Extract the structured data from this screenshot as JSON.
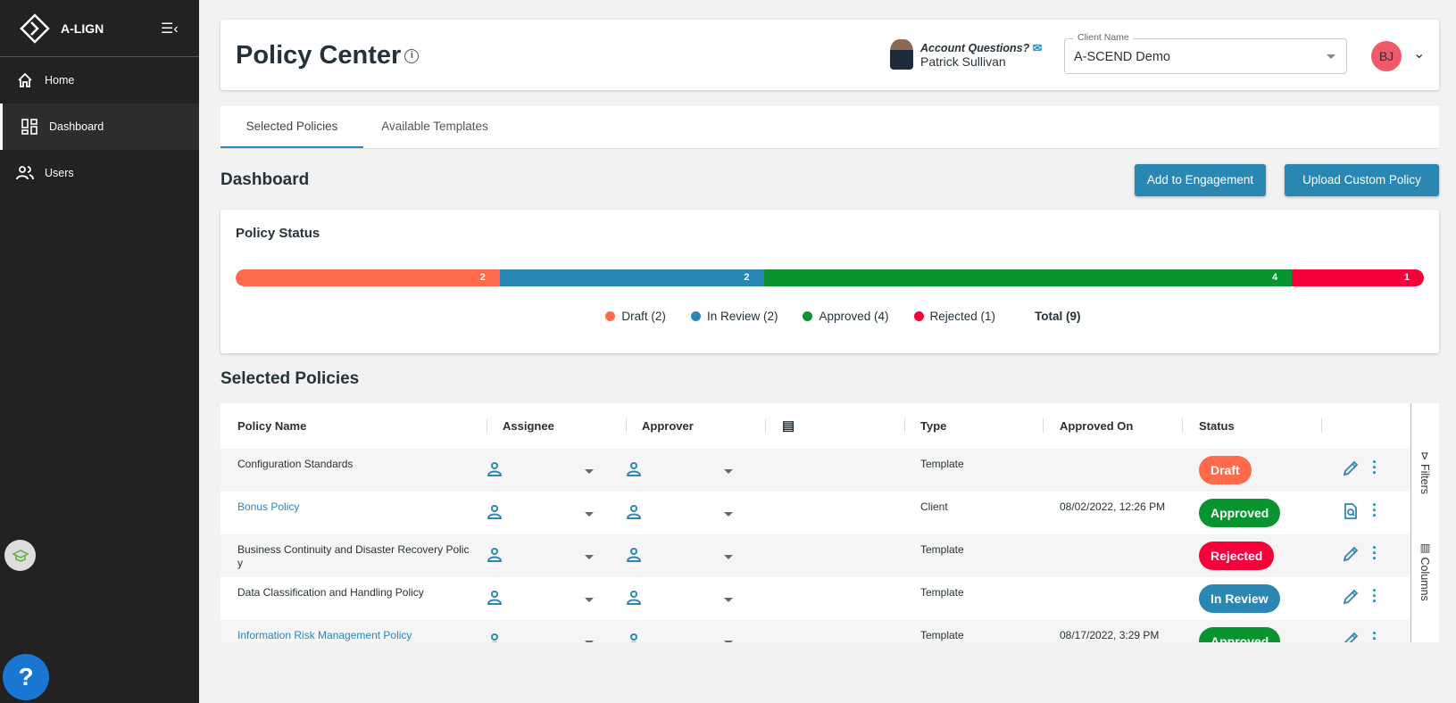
{
  "sidebar": {
    "logo": "A-LIGN",
    "items": [
      {
        "label": "Home"
      },
      {
        "label": "Dashboard"
      },
      {
        "label": "Users"
      }
    ],
    "help": "?"
  },
  "header": {
    "title": "Policy Center",
    "account_question": "Account Questions?",
    "account_manager": "Patrick Sullivan",
    "client_label": "Client Name",
    "client_value": "A-SCEND Demo",
    "user_initials": "BJ"
  },
  "tabs": [
    {
      "label": "Selected Policies",
      "active": true
    },
    {
      "label": "Available Templates"
    }
  ],
  "dashboard": {
    "title": "Dashboard",
    "add_button": "Add to Engagement",
    "upload_button": "Upload Custom Policy"
  },
  "policy_status": {
    "title": "Policy Status",
    "segments": [
      {
        "label": "Draft (2)",
        "value": 2,
        "color": "#ff6b4a"
      },
      {
        "label": "In Review (2)",
        "value": 2,
        "color": "#2a87b4"
      },
      {
        "label": "Approved (4)",
        "value": 4,
        "color": "#0a9430"
      },
      {
        "label": "Rejected (1)",
        "value": 1,
        "color": "#f5003a"
      }
    ],
    "total": "Total (9)"
  },
  "table": {
    "title": "Selected Policies",
    "columns": [
      "Policy Name",
      "Assignee",
      "Approver",
      "",
      "Type",
      "Approved On",
      "Status"
    ],
    "side_filters": "Filters",
    "side_columns": "Columns",
    "rows": [
      {
        "name": "Configuration Standards",
        "link": false,
        "type": "Template",
        "approved_on": "",
        "status": "Draft",
        "status_color": "#ff6b4a",
        "action": "edit"
      },
      {
        "name": "Bonus Policy",
        "link": true,
        "type": "Client",
        "approved_on": "08/02/2022, 12:26 PM",
        "status": "Approved",
        "status_color": "#0a9430",
        "action": "view"
      },
      {
        "name": "Business Continuity and Disaster Recovery Polic y",
        "link": false,
        "type": "Template",
        "approved_on": "",
        "status": "Rejected",
        "status_color": "#f5003a",
        "action": "edit"
      },
      {
        "name": "Data Classification and Handling Policy",
        "link": false,
        "type": "Template",
        "approved_on": "",
        "status": "In Review",
        "status_color": "#2a87b4",
        "action": "edit"
      },
      {
        "name": "Information Risk Management Policy",
        "link": true,
        "type": "Template",
        "approved_on": "08/17/2022, 3:29 PM",
        "status": "Approved",
        "status_color": "#0a9430",
        "action": "edit"
      }
    ]
  }
}
